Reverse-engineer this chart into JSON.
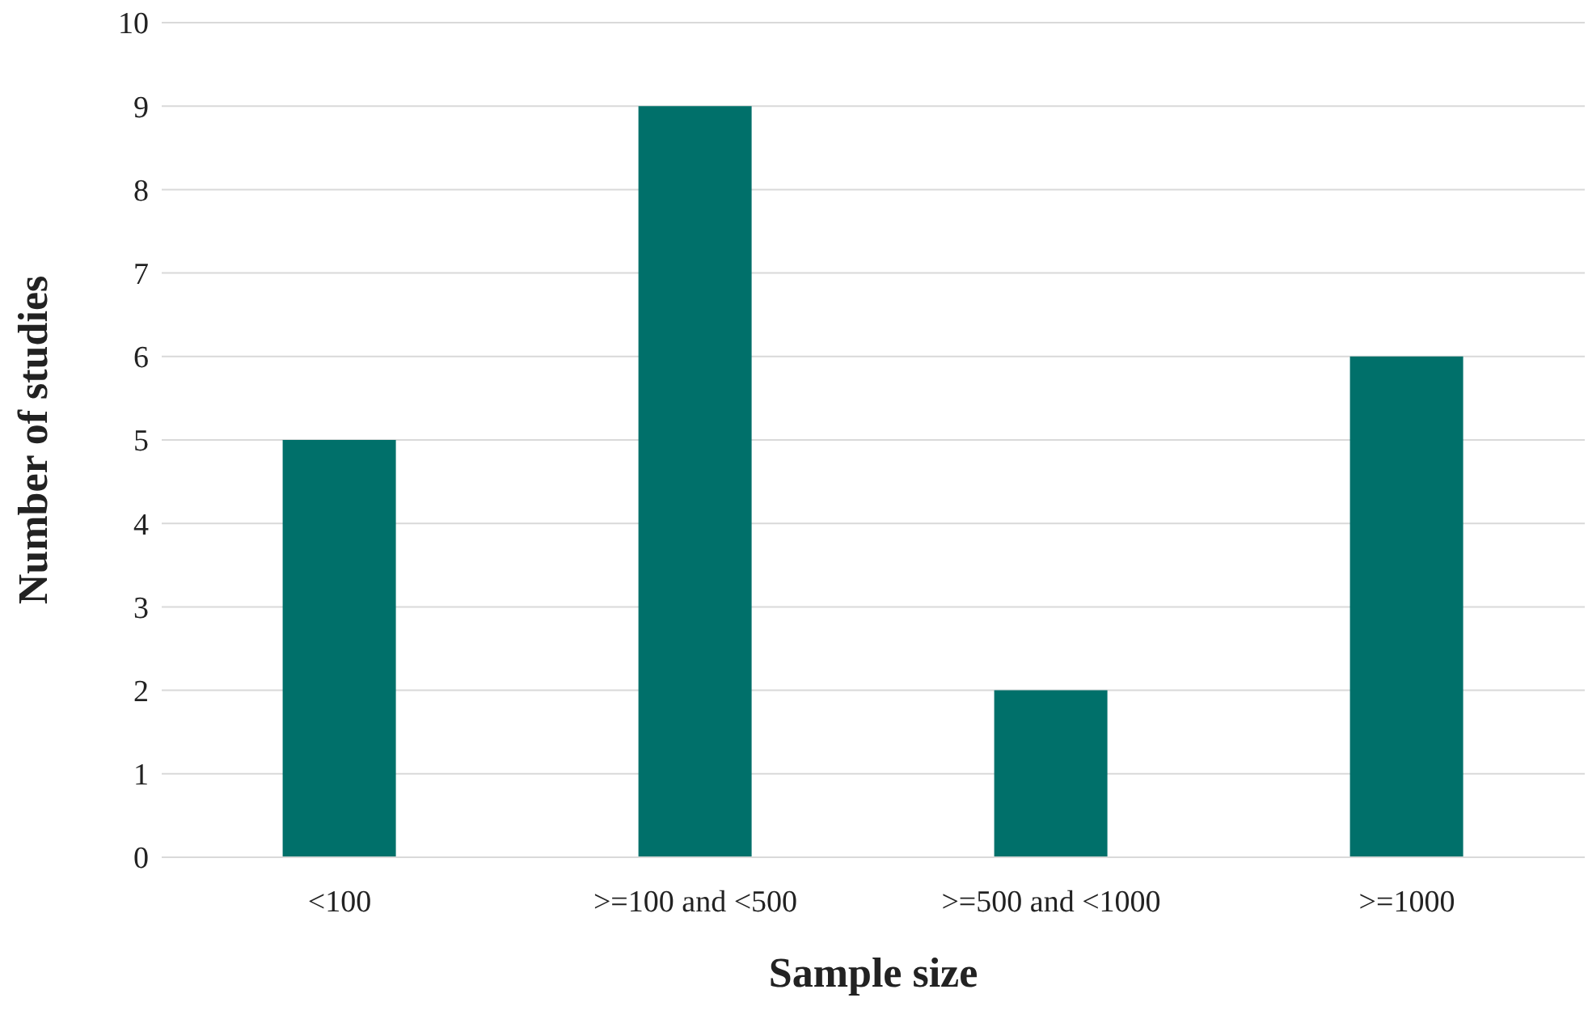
{
  "chart_data": {
    "type": "bar",
    "xlabel": "Sample size",
    "ylabel": "Number of studies",
    "categories": [
      "<100",
      ">=100 and <500",
      ">=500 and <1000",
      ">=1000"
    ],
    "values": [
      5,
      9,
      2,
      6
    ],
    "color": "#00706a",
    "ylim": [
      0,
      10
    ],
    "yticks": [
      0,
      1,
      2,
      3,
      4,
      5,
      6,
      7,
      8,
      9,
      10
    ],
    "grid": "y"
  }
}
